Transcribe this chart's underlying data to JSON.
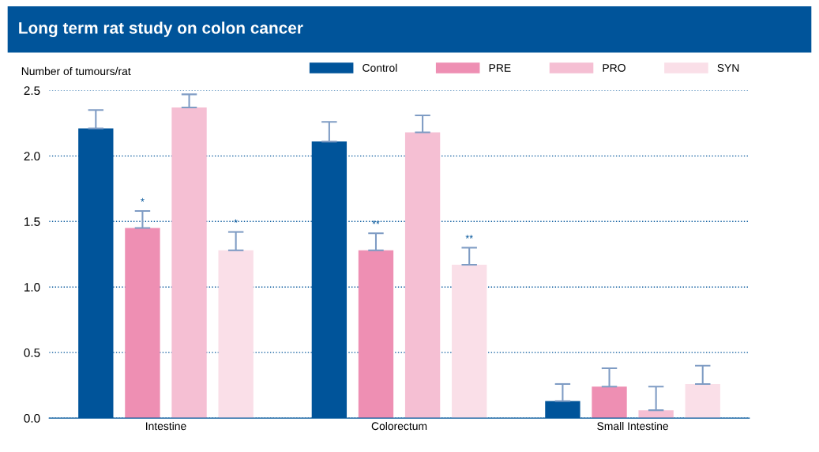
{
  "chart_data": {
    "type": "bar",
    "title": "Long term rat study on colon cancer",
    "ylabel": "Number of tumours/rat",
    "categories": [
      "Intestine",
      "Colorectum",
      "Small Intestine"
    ],
    "series": [
      {
        "name": "Control",
        "color": "#00549a",
        "values": [
          2.21,
          2.11,
          0.13
        ],
        "errors": [
          [
            2.21,
            2.35
          ],
          [
            2.11,
            2.26
          ],
          [
            0.13,
            0.26
          ]
        ]
      },
      {
        "name": "PRE",
        "color": "#ee8fb3",
        "values": [
          1.45,
          1.28,
          0.24
        ],
        "errors": [
          [
            1.45,
            1.58
          ],
          [
            1.28,
            1.41
          ],
          [
            0.24,
            0.38
          ]
        ],
        "value_labels": [
          "*",
          "**",
          null
        ]
      },
      {
        "name": "PRO",
        "color": "#f5bfd3",
        "values": [
          2.37,
          2.18,
          0.06
        ],
        "errors": [
          [
            2.37,
            2.47
          ],
          [
            2.18,
            2.31
          ],
          [
            0.06,
            0.24
          ]
        ]
      },
      {
        "name": "SYN",
        "color": "#fadfe8",
        "values": [
          1.28,
          1.17,
          0.26
        ],
        "errors": [
          [
            1.28,
            1.42
          ],
          [
            1.17,
            1.3
          ],
          [
            0.26,
            0.4
          ]
        ],
        "value_labels": [
          "*",
          "**",
          null
        ]
      }
    ],
    "ylim": [
      0,
      2.5
    ],
    "yticks": [
      {
        "value": 0,
        "label": "0.0"
      },
      {
        "value": 0.5,
        "label": "0.5"
      },
      {
        "value": 1,
        "label": "1.0"
      },
      {
        "value": 1.5,
        "label": "1.5"
      },
      {
        "value": 2,
        "label": "2.0"
      },
      {
        "value": 2.5,
        "label": "2.5"
      }
    ],
    "grid": "y",
    "legend": "top right"
  }
}
